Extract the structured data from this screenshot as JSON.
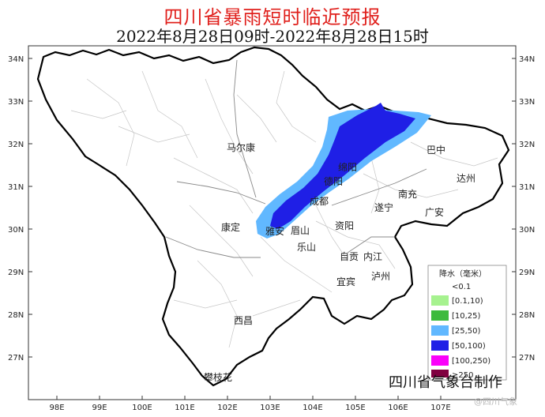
{
  "title": "四川省暴雨短时临近预报",
  "time_range": "2022年8月28日09时-2022年8月28日15时",
  "credit": "四川省气象台制作",
  "watermark": "@四川气象",
  "axes": {
    "lat_labels": [
      "34N",
      "33N",
      "32N",
      "31N",
      "30N",
      "29N",
      "28N",
      "27N"
    ],
    "lon_labels": [
      "98E",
      "99E",
      "100E",
      "101E",
      "102E",
      "103E",
      "104E",
      "105E",
      "106E",
      "107E"
    ]
  },
  "cities": [
    {
      "name": "马尔康"
    },
    {
      "name": "巴中"
    },
    {
      "name": "绵阳"
    },
    {
      "name": "达州"
    },
    {
      "name": "德阳"
    },
    {
      "name": "南充"
    },
    {
      "name": "成都"
    },
    {
      "name": "遂宁"
    },
    {
      "name": "广安"
    },
    {
      "name": "康定"
    },
    {
      "name": "雅安"
    },
    {
      "name": "眉山"
    },
    {
      "name": "资阳"
    },
    {
      "name": "乐山"
    },
    {
      "name": "自贡"
    },
    {
      "name": "内江"
    },
    {
      "name": "宜宾"
    },
    {
      "name": "泸州"
    },
    {
      "name": "西昌"
    },
    {
      "name": "攀枝花"
    }
  ],
  "legend": {
    "title": "降水（毫米）",
    "items": [
      {
        "label": "<0.1",
        "color": "#ffffff"
      },
      {
        "label": "[0.1,10)",
        "color": "#a6f28f"
      },
      {
        "label": "[10,25)",
        "color": "#3dba3d"
      },
      {
        "label": "[25,50)",
        "color": "#61b8ff"
      },
      {
        "label": "[50,100)",
        "color": "#1f1fe6"
      },
      {
        "label": "[100,250)",
        "color": "#fa00fa"
      },
      {
        "label": "≥250",
        "color": "#800040"
      }
    ]
  }
}
